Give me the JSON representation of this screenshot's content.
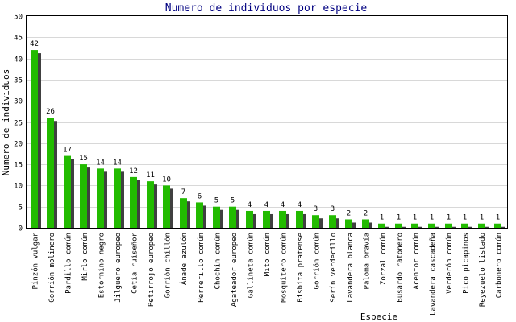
{
  "chart_data": {
    "type": "bar",
    "title": "Numero de individuos por especie",
    "xlabel": "Especie",
    "ylabel": "Numero de individuos",
    "ylim": [
      0,
      50
    ],
    "yticks": [
      0,
      5,
      10,
      15,
      20,
      25,
      30,
      35,
      40,
      45,
      50
    ],
    "grid": true,
    "legend": "none",
    "bar_color": "#22bb00",
    "shadow_color": "#404040",
    "categories": [
      "Pinzón vulgar",
      "Gorrión molinero",
      "Pardillo común",
      "Mirlo común",
      "Estornino negro",
      "Jilguero europeo",
      "Cetia ruiseñor",
      "Petirrojo europeo",
      "Gorrión chillón",
      "Ánade azulón",
      "Herrerillo común",
      "Chochín común",
      "Agateador europeo",
      "Gallineta común",
      "Mito común",
      "Mosquitero común",
      "Bisbita pratense",
      "Gorrión común",
      "Serín verdecillo",
      "Lavandera blanca",
      "Paloma bravía",
      "Zorzal común",
      "Busardo ratonero",
      "Acentor común",
      "Lavandera cascadeña",
      "Verderón común",
      "Pico picapinos",
      "Reyezuelo listado",
      "Carbonero común"
    ],
    "values": [
      42,
      26,
      17,
      15,
      14,
      14,
      12,
      11,
      10,
      7,
      6,
      5,
      5,
      4,
      4,
      4,
      4,
      3,
      3,
      2,
      2,
      1,
      1,
      1,
      1,
      1,
      1,
      1,
      1
    ]
  }
}
